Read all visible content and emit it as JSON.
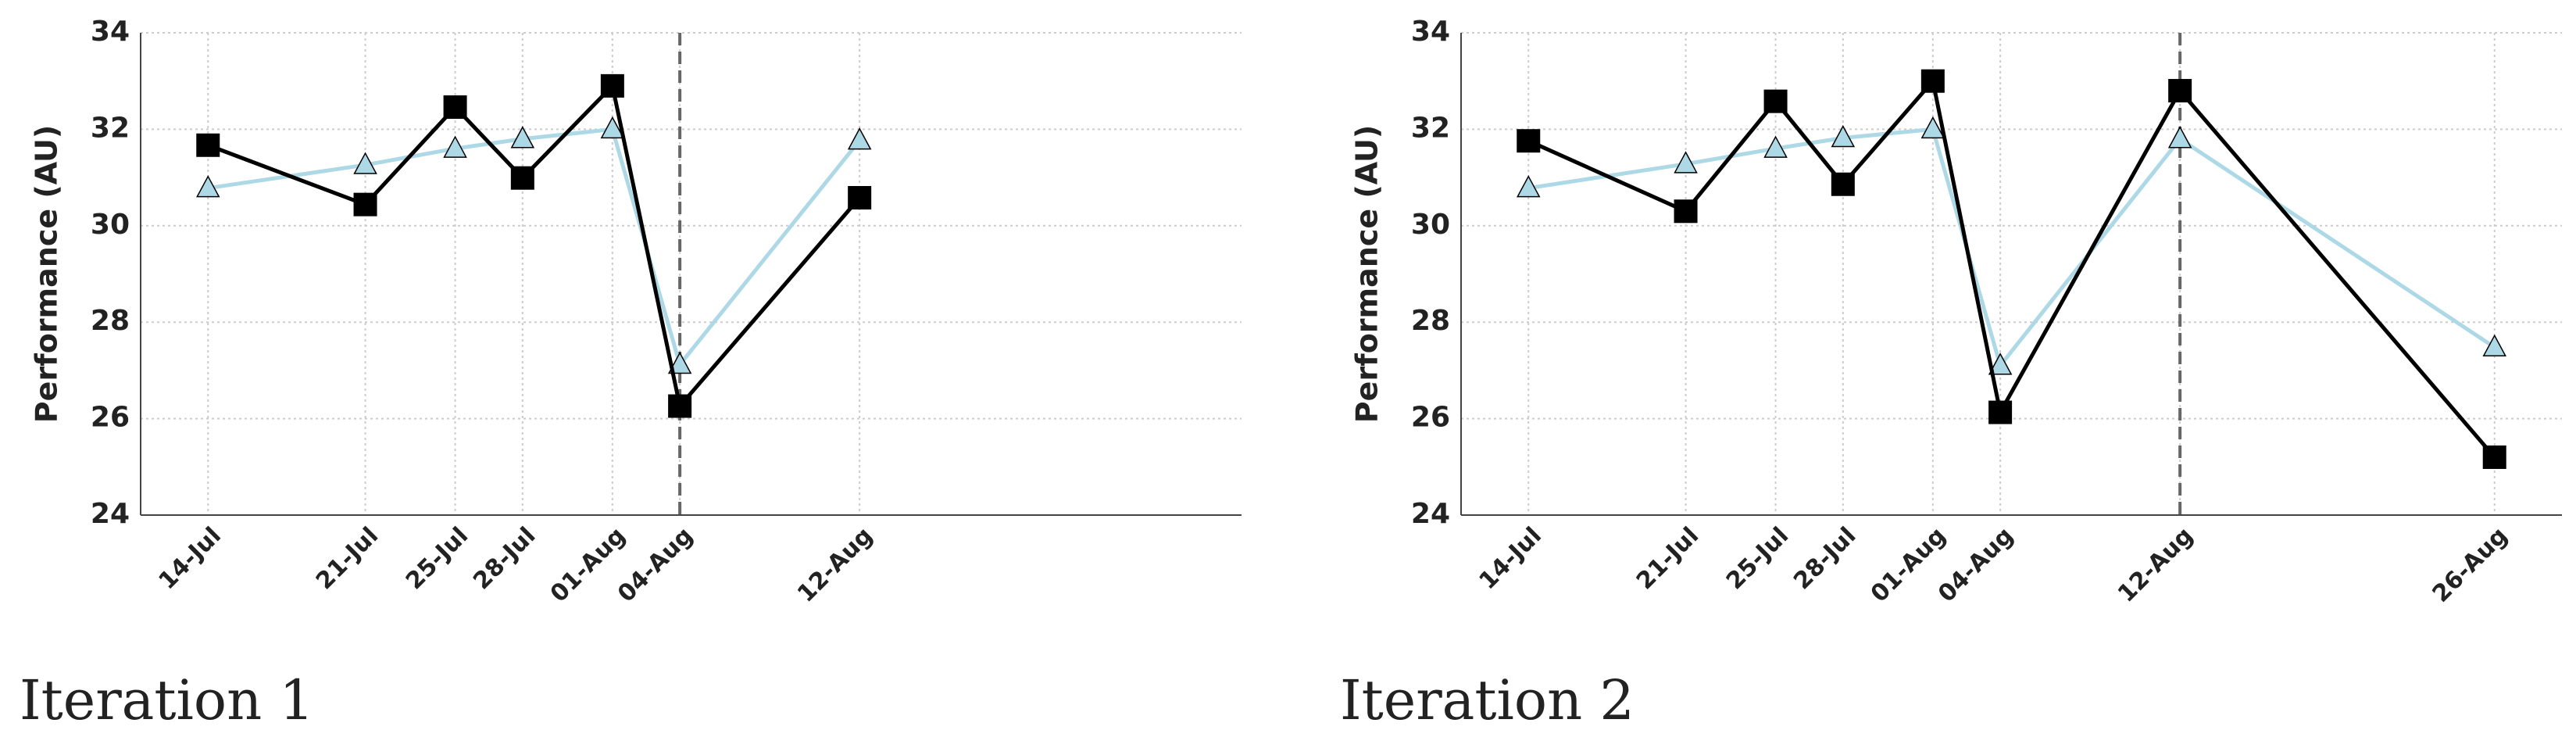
{
  "chart_data": [
    {
      "type": "line",
      "caption": "Iteration 1",
      "ylabel": "Performance (AU)",
      "x": [
        "14-Jul",
        "21-Jul",
        "25-Jul",
        "28-Jul",
        "01-Aug",
        "04-Aug",
        "12-Aug"
      ],
      "xlim": [
        "14-Jul",
        "26-Aug"
      ],
      "series": [
        {
          "color": "#add8e6",
          "marker": "triangle",
          "values": [
            30.78,
            31.26,
            31.6,
            31.8,
            32.0,
            27.12,
            31.77
          ]
        },
        {
          "color": "#000000",
          "marker": "square",
          "values": [
            31.67,
            30.44,
            32.46,
            30.99,
            32.9,
            26.26,
            30.58
          ]
        }
      ],
      "ylim": [
        24,
        34
      ],
      "yticks": [
        24,
        26,
        28,
        30,
        32,
        34
      ],
      "grid": true,
      "vline": "04-Aug"
    },
    {
      "type": "line",
      "caption": "Iteration 2",
      "ylabel": "Performance (AU)",
      "x": [
        "14-Jul",
        "21-Jul",
        "25-Jul",
        "28-Jul",
        "01-Aug",
        "04-Aug",
        "12-Aug",
        "26-Aug"
      ],
      "xlim": [
        "14-Jul",
        "26-Aug"
      ],
      "series": [
        {
          "color": "#add8e6",
          "marker": "triangle",
          "values": [
            30.78,
            31.28,
            31.6,
            31.82,
            32.0,
            27.1,
            31.8,
            27.48
          ]
        },
        {
          "color": "#000000",
          "marker": "square",
          "values": [
            31.76,
            30.3,
            32.58,
            30.86,
            33.0,
            26.13,
            32.8,
            25.2
          ]
        }
      ],
      "ylim": [
        24,
        34
      ],
      "yticks": [
        24,
        26,
        28,
        30,
        32,
        34
      ],
      "grid": true,
      "vline": "12-Aug"
    }
  ]
}
